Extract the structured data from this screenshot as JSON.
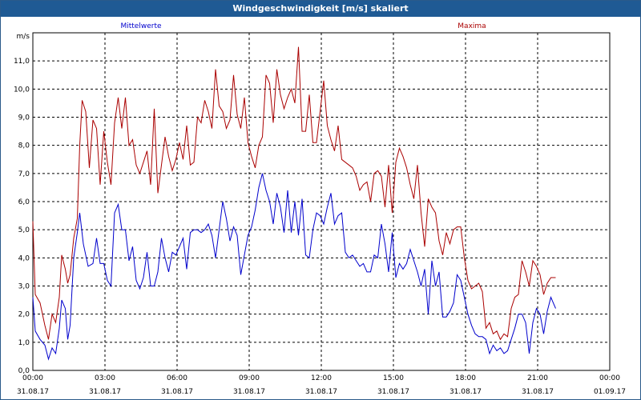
{
  "window": {
    "title": "Windgeschwindigkeit [m/s] skaliert"
  },
  "chart_data": {
    "type": "line",
    "title": "Windgeschwindigkeit [m/s] skaliert",
    "ylabel": "m/s",
    "ylim": [
      0,
      12
    ],
    "xlim_hours": [
      0,
      24
    ],
    "yticks": [
      "0,0",
      "1,0",
      "2,0",
      "3,0",
      "4,0",
      "5,0",
      "6,0",
      "7,0",
      "8,0",
      "9,0",
      "10,0",
      "11,0"
    ],
    "xticks": [
      {
        "time": "00:00",
        "date": "31.08.17"
      },
      {
        "time": "03:00",
        "date": "31.08.17"
      },
      {
        "time": "06:00",
        "date": "31.08.17"
      },
      {
        "time": "09:00",
        "date": "31.08.17"
      },
      {
        "time": "12:00",
        "date": "31.08.17"
      },
      {
        "time": "15:00",
        "date": "31.08.17"
      },
      {
        "time": "18:00",
        "date": "31.08.17"
      },
      {
        "time": "21:00",
        "date": "31.08.17"
      },
      {
        "time": "00:00",
        "date": "01.09.17"
      }
    ],
    "grid": true,
    "series": [
      {
        "name": "Mittelwerte",
        "color": "#0000cc",
        "points": [
          [
            0.0,
            2.6
          ],
          [
            0.1,
            1.4
          ],
          [
            0.3,
            1.1
          ],
          [
            0.5,
            0.9
          ],
          [
            0.65,
            0.4
          ],
          [
            0.8,
            0.8
          ],
          [
            0.95,
            0.6
          ],
          [
            1.1,
            1.5
          ],
          [
            1.2,
            2.5
          ],
          [
            1.35,
            2.2
          ],
          [
            1.45,
            1.1
          ],
          [
            1.55,
            1.6
          ],
          [
            1.7,
            4.0
          ],
          [
            1.85,
            4.9
          ],
          [
            1.95,
            5.6
          ],
          [
            2.1,
            4.5
          ],
          [
            2.3,
            3.7
          ],
          [
            2.5,
            3.8
          ],
          [
            2.65,
            4.7
          ],
          [
            2.8,
            3.8
          ],
          [
            2.95,
            3.8
          ],
          [
            3.1,
            3.2
          ],
          [
            3.25,
            3.0
          ],
          [
            3.4,
            5.6
          ],
          [
            3.55,
            5.9
          ],
          [
            3.7,
            5.0
          ],
          [
            3.85,
            5.0
          ],
          [
            4.0,
            3.9
          ],
          [
            4.15,
            4.4
          ],
          [
            4.3,
            3.2
          ],
          [
            4.45,
            2.9
          ],
          [
            4.6,
            3.3
          ],
          [
            4.75,
            4.2
          ],
          [
            4.9,
            3.0
          ],
          [
            5.05,
            3.0
          ],
          [
            5.2,
            3.5
          ],
          [
            5.35,
            4.7
          ],
          [
            5.5,
            4.0
          ],
          [
            5.65,
            3.5
          ],
          [
            5.8,
            4.2
          ],
          [
            5.95,
            4.1
          ],
          [
            6.1,
            4.4
          ],
          [
            6.25,
            4.7
          ],
          [
            6.4,
            3.6
          ],
          [
            6.55,
            4.9
          ],
          [
            6.7,
            5.0
          ],
          [
            6.85,
            5.0
          ],
          [
            7.0,
            4.9
          ],
          [
            7.15,
            5.0
          ],
          [
            7.3,
            5.2
          ],
          [
            7.45,
            4.8
          ],
          [
            7.6,
            4.0
          ],
          [
            7.75,
            5.0
          ],
          [
            7.9,
            6.0
          ],
          [
            8.05,
            5.4
          ],
          [
            8.2,
            4.6
          ],
          [
            8.35,
            5.1
          ],
          [
            8.5,
            4.8
          ],
          [
            8.65,
            3.4
          ],
          [
            8.8,
            4.1
          ],
          [
            8.95,
            4.8
          ],
          [
            9.1,
            5.1
          ],
          [
            9.25,
            5.7
          ],
          [
            9.4,
            6.5
          ],
          [
            9.55,
            7.0
          ],
          [
            9.7,
            6.4
          ],
          [
            9.85,
            6.0
          ],
          [
            10.0,
            5.2
          ],
          [
            10.15,
            6.3
          ],
          [
            10.3,
            5.8
          ],
          [
            10.45,
            4.9
          ],
          [
            10.6,
            6.4
          ],
          [
            10.75,
            4.9
          ],
          [
            10.9,
            6.0
          ],
          [
            11.05,
            4.8
          ],
          [
            11.2,
            6.1
          ],
          [
            11.35,
            4.1
          ],
          [
            11.5,
            4.0
          ],
          [
            11.65,
            5.0
          ],
          [
            11.8,
            5.6
          ],
          [
            11.95,
            5.5
          ],
          [
            12.1,
            5.2
          ],
          [
            12.25,
            5.8
          ],
          [
            12.4,
            6.3
          ],
          [
            12.55,
            5.2
          ],
          [
            12.7,
            5.5
          ],
          [
            12.85,
            5.6
          ],
          [
            13.0,
            4.2
          ],
          [
            13.15,
            4.0
          ],
          [
            13.3,
            4.1
          ],
          [
            13.45,
            3.9
          ],
          [
            13.6,
            3.7
          ],
          [
            13.75,
            3.8
          ],
          [
            13.9,
            3.5
          ],
          [
            14.05,
            3.5
          ],
          [
            14.2,
            4.1
          ],
          [
            14.35,
            4.0
          ],
          [
            14.5,
            5.2
          ],
          [
            14.65,
            4.5
          ],
          [
            14.8,
            3.5
          ],
          [
            14.95,
            4.9
          ],
          [
            15.1,
            3.3
          ],
          [
            15.25,
            3.8
          ],
          [
            15.4,
            3.6
          ],
          [
            15.55,
            3.8
          ],
          [
            15.7,
            4.3
          ],
          [
            15.85,
            3.9
          ],
          [
            16.0,
            3.5
          ],
          [
            16.15,
            3.0
          ],
          [
            16.3,
            3.6
          ],
          [
            16.45,
            2.0
          ],
          [
            16.6,
            3.9
          ],
          [
            16.75,
            3.0
          ],
          [
            16.9,
            3.5
          ],
          [
            17.05,
            1.9
          ],
          [
            17.2,
            1.9
          ],
          [
            17.35,
            2.1
          ],
          [
            17.5,
            2.4
          ],
          [
            17.65,
            3.4
          ],
          [
            17.8,
            3.2
          ],
          [
            17.95,
            2.6
          ],
          [
            18.1,
            2.0
          ],
          [
            18.25,
            1.6
          ],
          [
            18.4,
            1.3
          ],
          [
            18.55,
            1.2
          ],
          [
            18.7,
            1.2
          ],
          [
            18.85,
            1.1
          ],
          [
            19.0,
            0.6
          ],
          [
            19.15,
            0.9
          ],
          [
            19.3,
            0.7
          ],
          [
            19.45,
            0.8
          ],
          [
            19.6,
            0.6
          ],
          [
            19.75,
            0.7
          ],
          [
            19.9,
            1.1
          ],
          [
            20.05,
            1.5
          ],
          [
            20.2,
            2.0
          ],
          [
            20.35,
            2.0
          ],
          [
            20.5,
            1.7
          ],
          [
            20.65,
            0.6
          ],
          [
            20.8,
            1.7
          ],
          [
            20.95,
            2.2
          ],
          [
            21.1,
            2.0
          ],
          [
            21.25,
            1.3
          ],
          [
            21.4,
            2.1
          ],
          [
            21.55,
            2.6
          ],
          [
            21.75,
            2.2
          ]
        ]
      },
      {
        "name": "Maxima",
        "color": "#aa0000",
        "points": [
          [
            0.0,
            5.3
          ],
          [
            0.1,
            2.7
          ],
          [
            0.3,
            2.4
          ],
          [
            0.5,
            1.6
          ],
          [
            0.65,
            1.1
          ],
          [
            0.8,
            2.0
          ],
          [
            0.95,
            1.7
          ],
          [
            1.1,
            2.6
          ],
          [
            1.2,
            4.1
          ],
          [
            1.35,
            3.6
          ],
          [
            1.45,
            3.1
          ],
          [
            1.55,
            3.4
          ],
          [
            1.7,
            4.7
          ],
          [
            1.85,
            5.4
          ],
          [
            1.95,
            8.0
          ],
          [
            2.05,
            9.6
          ],
          [
            2.2,
            9.2
          ],
          [
            2.35,
            7.2
          ],
          [
            2.5,
            8.9
          ],
          [
            2.65,
            8.6
          ],
          [
            2.8,
            6.6
          ],
          [
            2.95,
            8.5
          ],
          [
            3.1,
            7.4
          ],
          [
            3.25,
            6.6
          ],
          [
            3.4,
            8.8
          ],
          [
            3.55,
            9.7
          ],
          [
            3.7,
            8.6
          ],
          [
            3.85,
            9.7
          ],
          [
            4.0,
            8.0
          ],
          [
            4.15,
            8.2
          ],
          [
            4.3,
            7.3
          ],
          [
            4.45,
            7.0
          ],
          [
            4.6,
            7.4
          ],
          [
            4.75,
            7.8
          ],
          [
            4.9,
            6.6
          ],
          [
            5.05,
            9.3
          ],
          [
            5.2,
            6.3
          ],
          [
            5.35,
            7.3
          ],
          [
            5.5,
            8.3
          ],
          [
            5.65,
            7.6
          ],
          [
            5.8,
            7.1
          ],
          [
            5.95,
            7.5
          ],
          [
            6.1,
            8.1
          ],
          [
            6.25,
            7.5
          ],
          [
            6.4,
            8.7
          ],
          [
            6.55,
            7.3
          ],
          [
            6.7,
            7.4
          ],
          [
            6.85,
            9.0
          ],
          [
            7.0,
            8.8
          ],
          [
            7.15,
            9.6
          ],
          [
            7.3,
            9.2
          ],
          [
            7.45,
            8.6
          ],
          [
            7.6,
            10.7
          ],
          [
            7.75,
            9.4
          ],
          [
            7.9,
            9.2
          ],
          [
            8.05,
            8.6
          ],
          [
            8.2,
            8.9
          ],
          [
            8.35,
            10.5
          ],
          [
            8.5,
            9.1
          ],
          [
            8.65,
            8.6
          ],
          [
            8.8,
            9.7
          ],
          [
            8.95,
            8.1
          ],
          [
            9.1,
            7.6
          ],
          [
            9.25,
            7.2
          ],
          [
            9.4,
            8.0
          ],
          [
            9.55,
            8.3
          ],
          [
            9.7,
            10.5
          ],
          [
            9.85,
            10.2
          ],
          [
            10.0,
            8.8
          ],
          [
            10.15,
            10.7
          ],
          [
            10.3,
            9.8
          ],
          [
            10.45,
            9.3
          ],
          [
            10.6,
            9.7
          ],
          [
            10.75,
            10.0
          ],
          [
            10.9,
            9.5
          ],
          [
            11.05,
            11.5
          ],
          [
            11.2,
            8.5
          ],
          [
            11.35,
            8.5
          ],
          [
            11.5,
            9.8
          ],
          [
            11.65,
            8.1
          ],
          [
            11.8,
            8.1
          ],
          [
            11.95,
            9.2
          ],
          [
            12.1,
            10.3
          ],
          [
            12.25,
            8.7
          ],
          [
            12.4,
            8.2
          ],
          [
            12.55,
            7.8
          ],
          [
            12.7,
            8.7
          ],
          [
            12.85,
            7.5
          ],
          [
            13.0,
            7.4
          ],
          [
            13.15,
            7.3
          ],
          [
            13.3,
            7.2
          ],
          [
            13.45,
            6.9
          ],
          [
            13.6,
            6.4
          ],
          [
            13.75,
            6.6
          ],
          [
            13.9,
            6.7
          ],
          [
            14.05,
            6.0
          ],
          [
            14.2,
            7.0
          ],
          [
            14.35,
            7.1
          ],
          [
            14.5,
            6.9
          ],
          [
            14.65,
            5.8
          ],
          [
            14.8,
            7.3
          ],
          [
            14.95,
            5.6
          ],
          [
            15.1,
            7.4
          ],
          [
            15.25,
            7.9
          ],
          [
            15.4,
            7.6
          ],
          [
            15.55,
            7.2
          ],
          [
            15.7,
            6.6
          ],
          [
            15.85,
            6.1
          ],
          [
            16.0,
            7.3
          ],
          [
            16.15,
            5.6
          ],
          [
            16.3,
            4.4
          ],
          [
            16.45,
            6.1
          ],
          [
            16.6,
            5.8
          ],
          [
            16.75,
            5.6
          ],
          [
            16.9,
            4.6
          ],
          [
            17.05,
            4.1
          ],
          [
            17.2,
            4.9
          ],
          [
            17.35,
            4.5
          ],
          [
            17.5,
            5.0
          ],
          [
            17.65,
            5.1
          ],
          [
            17.8,
            5.1
          ],
          [
            17.95,
            4.0
          ],
          [
            18.1,
            3.2
          ],
          [
            18.25,
            2.9
          ],
          [
            18.4,
            3.0
          ],
          [
            18.55,
            3.1
          ],
          [
            18.7,
            2.8
          ],
          [
            18.85,
            1.5
          ],
          [
            19.0,
            1.7
          ],
          [
            19.15,
            1.3
          ],
          [
            19.3,
            1.4
          ],
          [
            19.45,
            1.1
          ],
          [
            19.6,
            1.3
          ],
          [
            19.75,
            1.2
          ],
          [
            19.9,
            2.2
          ],
          [
            20.05,
            2.6
          ],
          [
            20.2,
            2.7
          ],
          [
            20.35,
            3.9
          ],
          [
            20.5,
            3.5
          ],
          [
            20.65,
            3.0
          ],
          [
            20.8,
            3.9
          ],
          [
            20.95,
            3.7
          ],
          [
            21.1,
            3.4
          ],
          [
            21.25,
            2.7
          ],
          [
            21.4,
            3.1
          ],
          [
            21.55,
            3.3
          ],
          [
            21.75,
            3.3
          ]
        ]
      }
    ]
  }
}
